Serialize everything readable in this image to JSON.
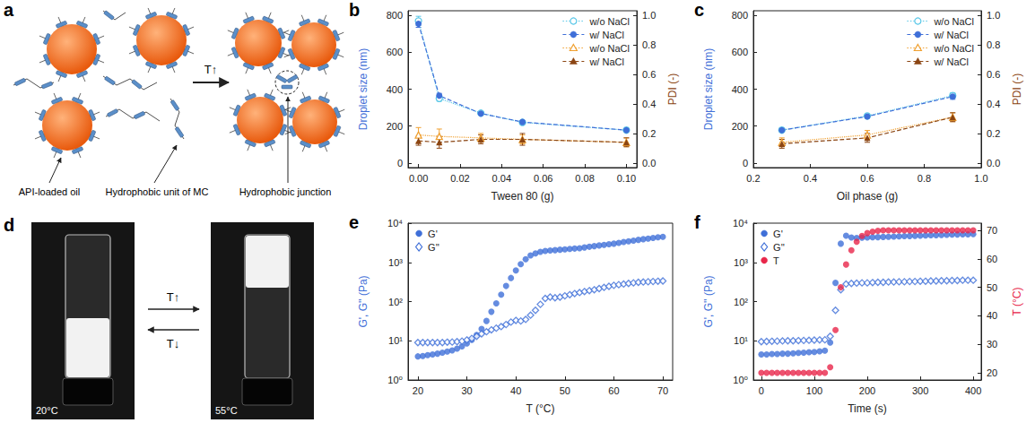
{
  "schematic": {
    "panel": "a",
    "oil_label": "API-loaded oil",
    "unit_label": "Hydrophobic unit of MC",
    "junction_label": "Hydrophobic junction",
    "arrow_label": "T↑"
  },
  "photo": {
    "panel": "d",
    "left_label": "20°C",
    "right_label": "55°C",
    "heat_label": "T↑",
    "cool_label": "T↓"
  },
  "chart_data": [
    {
      "panel": "b",
      "type": "line",
      "xlabel": "Tween 80 (g)",
      "ylabel": "Droplet size (nm)",
      "y2label": "PDI (-)",
      "x": [
        0,
        0.01,
        0.03,
        0.05,
        0.1
      ],
      "xlim": [
        -0.005,
        0.105
      ],
      "xticks": [
        {
          "value": 0,
          "label": "0.00"
        },
        0.02,
        0.04,
        0.06,
        0.08,
        {
          "value": 0.1,
          "label": "0.10"
        }
      ],
      "ylim": [
        -25,
        825
      ],
      "yticks": [
        0,
        200,
        400,
        600,
        800
      ],
      "y2lim": [
        -0.03125,
        1.03125
      ],
      "y2ticks": [
        {
          "value": 0,
          "label": "0.0"
        },
        0.2,
        0.4,
        0.6,
        0.8,
        {
          "value": 1,
          "label": "1.0"
        }
      ],
      "grid": false,
      "legend": "upper right",
      "series": [
        {
          "name": "w/o NaCl",
          "color": "#5bc8e8",
          "marker": "circle_open",
          "line_style": "dotted",
          "values": [
            770,
            350,
            270,
            220,
            178
          ],
          "errors": [
            25,
            15,
            8,
            8,
            8
          ]
        },
        {
          "name": "w/ NaCl",
          "color": "#3f6fd8",
          "marker": "circle",
          "line_style": "dashed",
          "values": [
            755,
            365,
            268,
            222,
            178
          ],
          "errors": [
            20,
            12,
            8,
            8,
            8
          ]
        },
        {
          "name": "w/o NaCl",
          "color": "#f0a030",
          "marker": "triangle_open",
          "line_style": "dotted",
          "axis": "y2",
          "values": [
            0.19,
            0.18,
            0.17,
            0.16,
            0.14
          ],
          "errors": [
            0.05,
            0.05,
            0.03,
            0.03,
            0.03
          ]
        },
        {
          "name": "w/ NaCl",
          "color": "#8b4513",
          "marker": "triangle",
          "line_style": "dashed",
          "axis": "y2",
          "values": [
            0.15,
            0.14,
            0.16,
            0.16,
            0.14
          ],
          "errors": [
            0.03,
            0.04,
            0.03,
            0.04,
            0.03
          ]
        }
      ]
    },
    {
      "panel": "c",
      "type": "line",
      "xlabel": "Oil phase (g)",
      "ylabel": "Droplet size (nm)",
      "y2label": "PDI (-)",
      "x": [
        0.3,
        0.6,
        0.9
      ],
      "xlim": [
        0.2,
        1.0
      ],
      "xticks": [
        0.2,
        0.4,
        0.6,
        0.8,
        {
          "value": 1,
          "label": "1.0"
        }
      ],
      "ylim": [
        -25,
        825
      ],
      "yticks": [
        0,
        200,
        400,
        600,
        800
      ],
      "y2lim": [
        -0.03125,
        1.03125
      ],
      "y2ticks": [
        {
          "value": 0,
          "label": "0.0"
        },
        0.2,
        0.4,
        0.6,
        0.8,
        {
          "value": 1,
          "label": "1.0"
        }
      ],
      "grid": false,
      "legend": "upper right",
      "series": [
        {
          "name": "w/o NaCl",
          "color": "#5bc8e8",
          "marker": "circle_open",
          "line_style": "dotted",
          "values": [
            178,
            255,
            365
          ],
          "errors": [
            10,
            10,
            15
          ]
        },
        {
          "name": "w/ NaCl",
          "color": "#3f6fd8",
          "marker": "circle",
          "line_style": "dashed",
          "values": [
            178,
            252,
            360
          ],
          "errors": [
            10,
            10,
            15
          ]
        },
        {
          "name": "w/o NaCl",
          "color": "#f0a030",
          "marker": "triangle_open",
          "line_style": "dotted",
          "axis": "y2",
          "values": [
            0.14,
            0.19,
            0.31
          ],
          "errors": [
            0.03,
            0.03,
            0.03
          ]
        },
        {
          "name": "w/ NaCl",
          "color": "#8b4513",
          "marker": "triangle",
          "line_style": "dashed",
          "axis": "y2",
          "values": [
            0.13,
            0.17,
            0.31
          ],
          "errors": [
            0.03,
            0.03,
            0.03
          ]
        }
      ]
    },
    {
      "panel": "e",
      "type": "scatter",
      "log": "y",
      "xlabel": "T (°C)",
      "ylabel": "G', G'' (Pa)",
      "x": [
        20,
        21,
        22,
        23,
        24,
        25,
        26,
        27,
        28,
        29,
        30,
        31,
        32,
        33,
        34,
        35,
        36,
        37,
        38,
        39,
        40,
        41,
        42,
        43,
        44,
        45,
        46,
        47,
        48,
        49,
        50,
        51,
        52,
        53,
        54,
        55,
        56,
        57,
        58,
        59,
        60,
        61,
        62,
        63,
        64,
        65,
        66,
        67,
        68,
        69,
        70
      ],
      "xlim": [
        18,
        72
      ],
      "xticks": [
        20,
        30,
        40,
        50,
        60,
        70
      ],
      "ylim": [
        1,
        10000
      ],
      "yticks": [
        {
          "value": 1,
          "label": "10⁰"
        },
        {
          "value": 10,
          "label": "10¹"
        },
        {
          "value": 100,
          "label": "10²"
        },
        {
          "value": 1000,
          "label": "10³"
        },
        {
          "value": 10000,
          "label": "10⁴"
        }
      ],
      "grid": false,
      "legend": "upper left",
      "series": [
        {
          "name": "G'",
          "color": "#3f6fd8",
          "marker": "circle",
          "values": [
            4.0,
            4.1,
            4.3,
            4.5,
            4.7,
            5.0,
            5.3,
            5.7,
            6.3,
            7.2,
            8.5,
            10.5,
            14,
            20,
            32,
            55,
            90,
            150,
            250,
            400,
            620,
            900,
            1200,
            1500,
            1700,
            1850,
            1950,
            2000,
            2050,
            2100,
            2150,
            2200,
            2250,
            2300,
            2400,
            2500,
            2600,
            2700,
            2800,
            2900,
            3000,
            3150,
            3300,
            3450,
            3600,
            3750,
            3900,
            4050,
            4200,
            4350,
            4500
          ]
        },
        {
          "name": "G''",
          "color": "#3f6fd8",
          "marker": "diamond_open",
          "values": [
            9,
            9,
            9,
            9,
            9,
            9,
            9.2,
            9.3,
            9.5,
            9.8,
            10.5,
            11.5,
            13,
            15,
            17,
            19,
            21,
            23,
            26,
            30,
            33,
            32,
            35,
            45,
            60,
            85,
            120,
            130,
            125,
            130,
            140,
            150,
            160,
            170,
            180,
            190,
            200,
            215,
            230,
            245,
            260,
            270,
            280,
            290,
            300,
            310,
            315,
            320,
            325,
            330,
            335
          ]
        }
      ]
    },
    {
      "panel": "f",
      "type": "scatter",
      "log": "y",
      "xlabel": "Time (s)",
      "ylabel": "G', G'' (Pa)",
      "y2label": "T (°C)",
      "x": [
        0,
        10,
        20,
        30,
        40,
        50,
        60,
        70,
        80,
        90,
        100,
        110,
        120,
        130,
        140,
        150,
        160,
        170,
        180,
        190,
        200,
        210,
        220,
        230,
        240,
        250,
        260,
        270,
        280,
        290,
        300,
        310,
        320,
        330,
        340,
        350,
        360,
        370,
        380,
        390,
        400
      ],
      "xlim": [
        -15,
        415
      ],
      "xticks": [
        0,
        100,
        200,
        300,
        400
      ],
      "ylim": [
        1,
        10000
      ],
      "yticks": [
        {
          "value": 1,
          "label": "10⁰"
        },
        {
          "value": 10,
          "label": "10¹"
        },
        {
          "value": 100,
          "label": "10²"
        },
        {
          "value": 1000,
          "label": "10³"
        },
        {
          "value": 10000,
          "label": "10⁴"
        }
      ],
      "y2lim": [
        17.5,
        72.5
      ],
      "y2ticks": [
        20,
        30,
        40,
        50,
        60,
        70
      ],
      "grid": false,
      "legend": "upper left",
      "series": [
        {
          "name": "G'",
          "color": "#3f6fd8",
          "marker": "circle",
          "values": [
            4.5,
            4.5,
            4.6,
            4.6,
            4.7,
            4.7,
            4.8,
            4.9,
            5.0,
            5.1,
            5.2,
            5.4,
            5.6,
            9,
            300,
            3000,
            4800,
            4300,
            4200,
            4250,
            4300,
            4350,
            4400,
            4450,
            4500,
            4550,
            4600,
            4650,
            4700,
            4750,
            4800,
            4850,
            4900,
            4950,
            5000,
            5050,
            5100,
            5150,
            5200,
            5200,
            5250
          ]
        },
        {
          "name": "G''",
          "color": "#3f6fd8",
          "marker": "diamond_open",
          "values": [
            9.5,
            9.6,
            9.7,
            9.8,
            9.9,
            10,
            10,
            10.1,
            10.2,
            10.3,
            10.4,
            10.5,
            10.6,
            13,
            60,
            200,
            280,
            290,
            295,
            300,
            300,
            305,
            310,
            310,
            315,
            315,
            320,
            320,
            325,
            325,
            330,
            330,
            335,
            335,
            340,
            340,
            345,
            345,
            350,
            350,
            350
          ]
        },
        {
          "name": "T",
          "color": "#e8264a",
          "marker": "circle",
          "axis": "y2",
          "values": [
            20,
            20,
            20,
            20,
            20,
            20,
            20,
            20,
            20,
            20,
            20,
            20,
            20,
            22,
            35,
            50,
            58,
            63,
            66,
            68,
            69,
            69.5,
            69.8,
            70,
            70,
            70,
            70,
            70,
            70,
            70,
            70,
            70,
            70,
            70,
            70,
            70,
            70,
            70,
            70,
            70,
            70
          ]
        }
      ]
    }
  ]
}
